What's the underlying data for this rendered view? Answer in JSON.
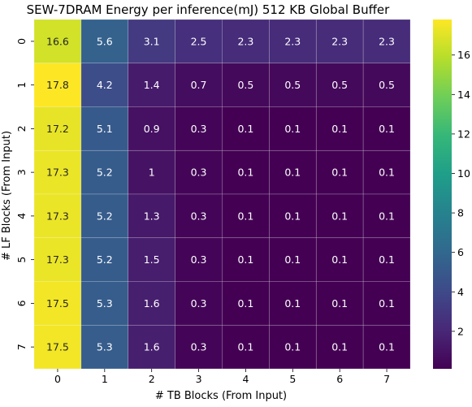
{
  "chart_data": {
    "type": "heatmap",
    "title": "SEW-7DRAM Energy per inference(mJ) 512 KB Global Buffer",
    "xlabel": "# TB Blocks (From Input)",
    "ylabel": "# LF Blocks (From Input)",
    "x_categories": [
      "0",
      "1",
      "2",
      "3",
      "4",
      "5",
      "6",
      "7"
    ],
    "y_categories": [
      "0",
      "1",
      "2",
      "3",
      "4",
      "5",
      "6",
      "7"
    ],
    "values": [
      [
        16.6,
        5.6,
        3.1,
        2.5,
        2.3,
        2.3,
        2.3,
        2.3
      ],
      [
        17.8,
        4.2,
        1.4,
        0.7,
        0.5,
        0.5,
        0.5,
        0.5
      ],
      [
        17.2,
        5.1,
        0.9,
        0.3,
        0.1,
        0.1,
        0.1,
        0.1
      ],
      [
        17.3,
        5.2,
        1,
        0.3,
        0.1,
        0.1,
        0.1,
        0.1
      ],
      [
        17.3,
        5.2,
        1.3,
        0.3,
        0.1,
        0.1,
        0.1,
        0.1
      ],
      [
        17.3,
        5.2,
        1.5,
        0.3,
        0.1,
        0.1,
        0.1,
        0.1
      ],
      [
        17.5,
        5.3,
        1.6,
        0.3,
        0.1,
        0.1,
        0.1,
        0.1
      ],
      [
        17.5,
        5.3,
        1.6,
        0.3,
        0.1,
        0.1,
        0.1,
        0.1
      ]
    ],
    "colormap": "viridis",
    "color_range": [
      0.1,
      17.8
    ],
    "colorbar_ticks": [
      2,
      4,
      6,
      8,
      10,
      12,
      14,
      16
    ],
    "cell_borders": true,
    "grid": false
  }
}
